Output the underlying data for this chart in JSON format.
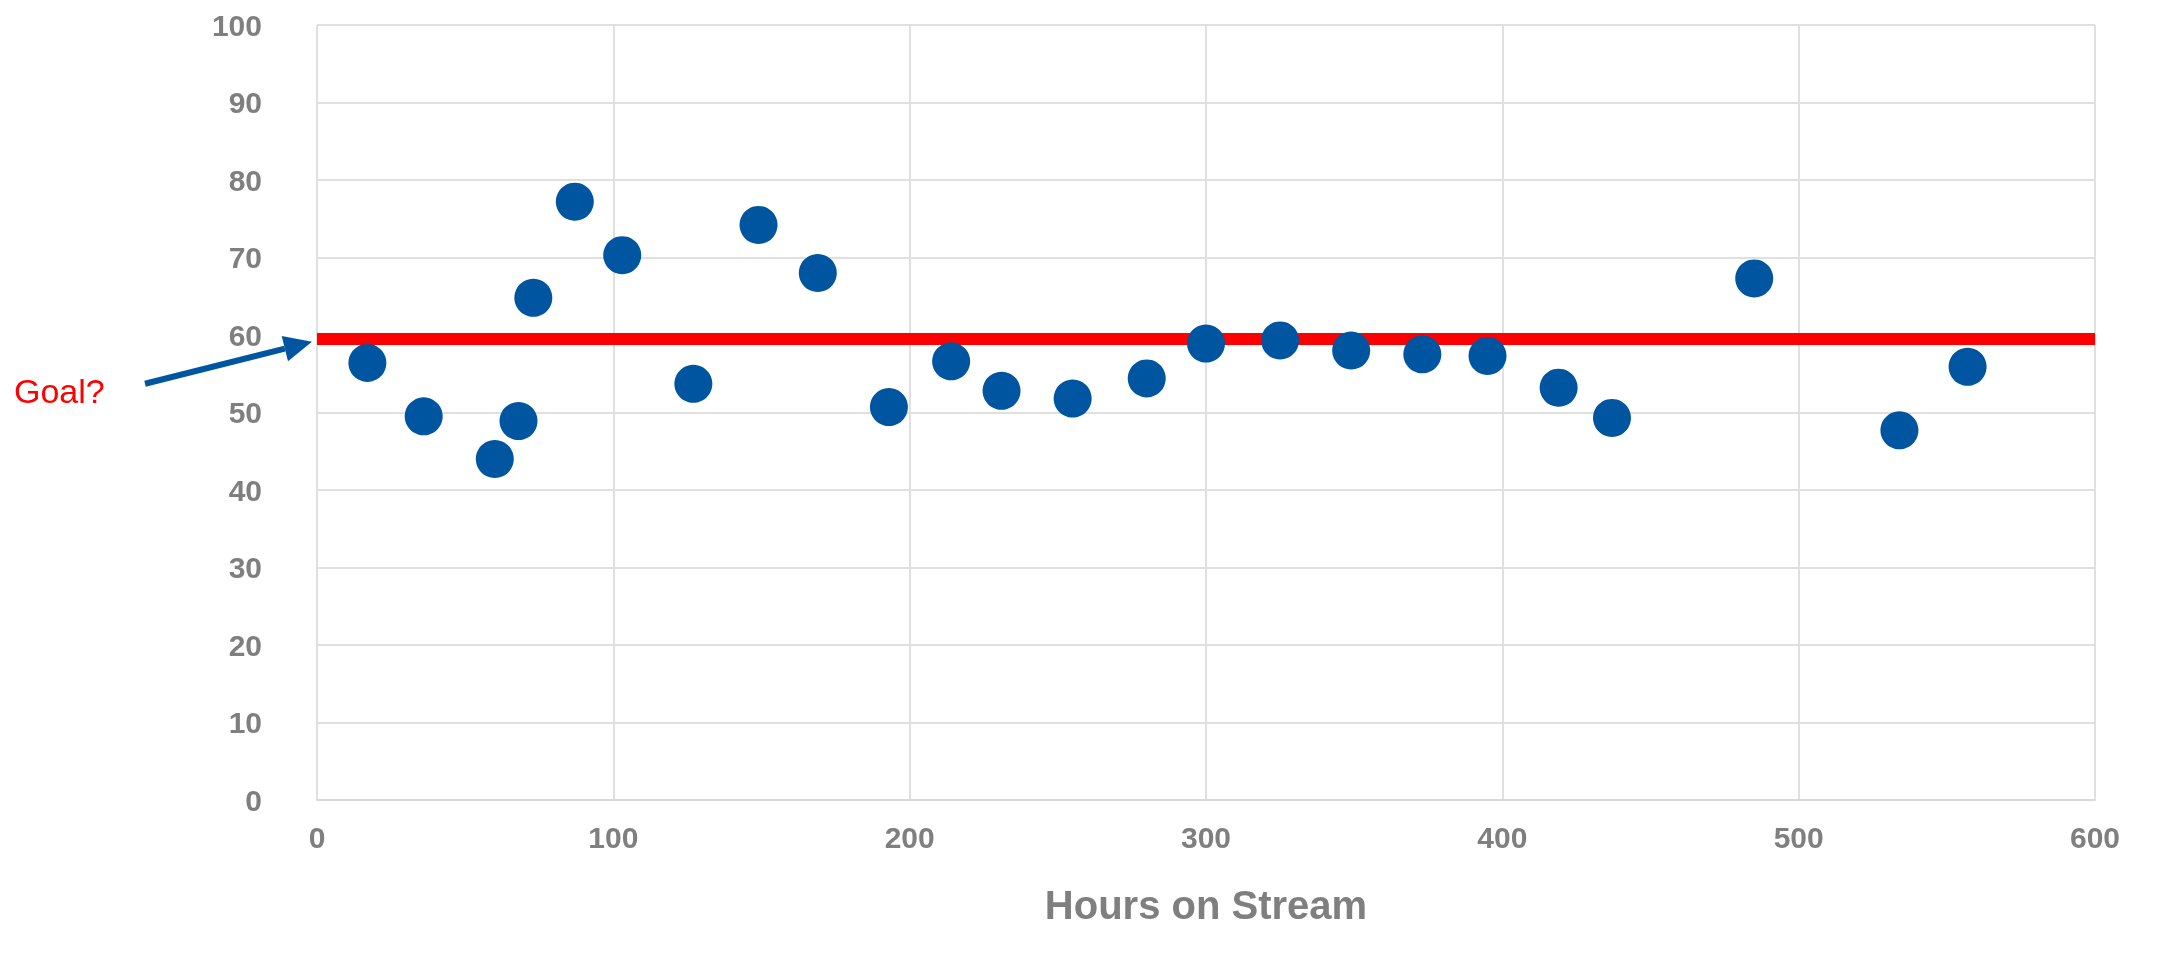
{
  "chart_data": {
    "type": "scatter",
    "xlabel": "Hours on Stream",
    "x": [
      17,
      36,
      60,
      68,
      73,
      87,
      103,
      127,
      149,
      169,
      193,
      214,
      231,
      255,
      280,
      300,
      325,
      349,
      373,
      395,
      419,
      437,
      485,
      534,
      557
    ],
    "series": [
      {
        "color": "#0055a0",
        "values": [
          56.4,
          49.5,
          44,
          48.9,
          64.8,
          77.2,
          70.3,
          53.7,
          74.2,
          68,
          50.7,
          56.6,
          52.8,
          51.8,
          54.4,
          58.9,
          59.3,
          58,
          57.5,
          57.3,
          53.2,
          49.3,
          67.3,
          47.7,
          55.9
        ]
      }
    ],
    "xlim": [
      0,
      600
    ],
    "xticks": [
      0,
      100,
      200,
      300,
      400,
      500,
      600
    ],
    "ylim": [
      0,
      100
    ],
    "yticks": [
      0,
      10,
      20,
      30,
      40,
      50,
      60,
      70,
      80,
      90,
      100
    ],
    "ref_lines": [
      {
        "axis": "y",
        "value": 59.5,
        "label": "Goal?",
        "color": "#ff0000"
      }
    ],
    "grid": true,
    "marker": "circle"
  }
}
